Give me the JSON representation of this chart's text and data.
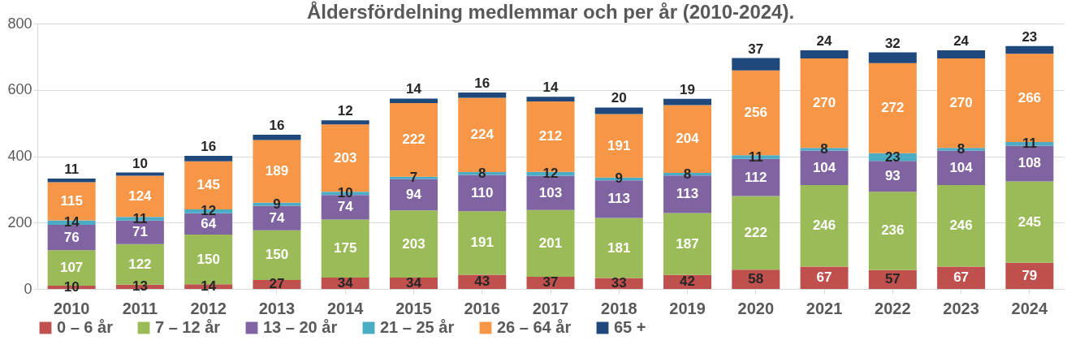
{
  "chart_data": {
    "type": "bar",
    "stacked": true,
    "title": "Åldersfördelning medlemmar och per år (2010-2024).",
    "categories": [
      "2010",
      "2011",
      "2012",
      "2013",
      "2014",
      "2015",
      "2016",
      "2017",
      "2018",
      "2019",
      "2020",
      "2021",
      "2022",
      "2023",
      "2024"
    ],
    "series": [
      {
        "name": "0 – 6 år",
        "color": "#c0504d",
        "values": [
          10,
          13,
          14,
          27,
          34,
          34,
          43,
          37,
          33,
          42,
          58,
          67,
          57,
          67,
          79
        ]
      },
      {
        "name": "7 – 12 år",
        "color": "#9bbb59",
        "values": [
          107,
          122,
          150,
          150,
          175,
          203,
          191,
          201,
          181,
          187,
          222,
          246,
          236,
          246,
          245
        ]
      },
      {
        "name": "13 – 20 år",
        "color": "#8064a2",
        "values": [
          76,
          71,
          64,
          74,
          74,
          94,
          110,
          103,
          113,
          113,
          112,
          104,
          93,
          104,
          108
        ]
      },
      {
        "name": "21 – 25 år",
        "color": "#4bacc6",
        "values": [
          14,
          11,
          12,
          9,
          10,
          7,
          8,
          12,
          9,
          8,
          11,
          8,
          23,
          8,
          11
        ]
      },
      {
        "name": "26 – 64 år",
        "color": "#f79646",
        "values": [
          115,
          124,
          145,
          189,
          203,
          222,
          224,
          212,
          191,
          204,
          256,
          270,
          272,
          270,
          266
        ]
      },
      {
        "name": "65 +",
        "color": "#1f497d",
        "values": [
          11,
          10,
          16,
          16,
          12,
          14,
          16,
          14,
          20,
          19,
          37,
          24,
          32,
          24,
          23
        ]
      }
    ],
    "ylim": [
      0,
      800
    ],
    "yticks": [
      0,
      200,
      400,
      600,
      800
    ],
    "grid": "y",
    "legend": "bottom",
    "data_labels": true
  }
}
